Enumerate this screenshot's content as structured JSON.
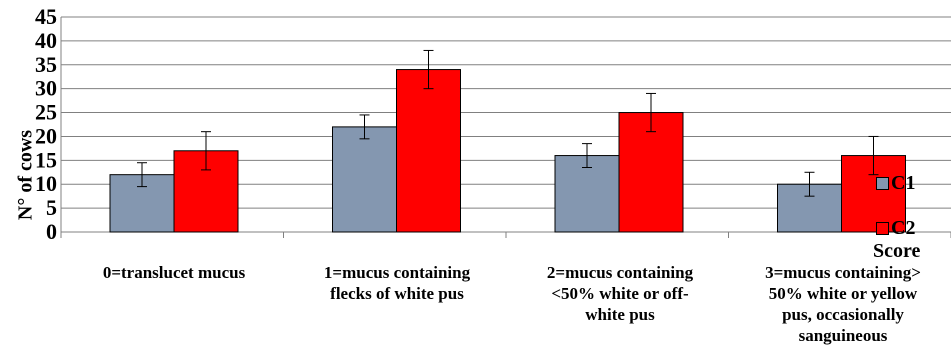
{
  "chart_data": {
    "type": "bar",
    "title": "",
    "xlabel": "Score",
    "ylabel": "N° of cows",
    "ylim": [
      0,
      45
    ],
    "yticks": [
      0,
      5,
      10,
      15,
      20,
      25,
      30,
      35,
      40,
      45
    ],
    "categories": [
      "0=translucet mucus",
      "1=mucus containing flecks of white pus",
      "2=mucus containing <50% white or off-white pus",
      "3=mucus containing> 50% white or yellow pus, occasionally sanguineous"
    ],
    "category_lines": [
      [
        "0=translucet mucus"
      ],
      [
        "1=mucus containing",
        "flecks of white pus"
      ],
      [
        "2=mucus containing",
        "<50% white or off-",
        "white pus"
      ],
      [
        "3=mucus containing>",
        "50% white or yellow",
        "pus, occasionally",
        "sanguineous"
      ]
    ],
    "series": [
      {
        "name": "C1",
        "color": "#8497B0",
        "values": [
          12,
          22,
          16,
          10
        ],
        "errors": [
          2.5,
          2.5,
          2.5,
          2.5
        ]
      },
      {
        "name": "C2",
        "color": "#FF0000",
        "values": [
          17,
          34,
          25,
          16
        ],
        "errors": [
          4,
          4,
          4,
          4
        ]
      }
    ],
    "grid": true,
    "legend": "right"
  }
}
